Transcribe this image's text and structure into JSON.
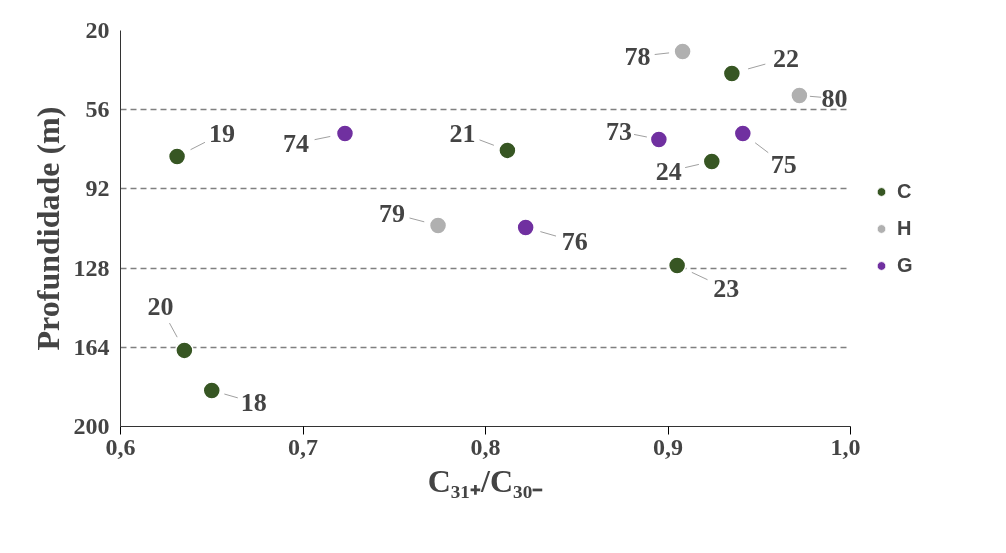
{
  "chart_data": {
    "type": "scatter",
    "xlabel": "C₃₁₊/C₃₀₋",
    "ylabel": "Profundidade (m)",
    "xlim": [
      0.6,
      1.0
    ],
    "ylim": [
      200,
      20
    ],
    "xticks": [
      {
        "value": 0.6,
        "label": "0,6"
      },
      {
        "value": 0.7,
        "label": "0,7"
      },
      {
        "value": 0.8,
        "label": "0,8"
      },
      {
        "value": 0.9,
        "label": "0,9"
      },
      {
        "value": 1.0,
        "label": "1,0"
      }
    ],
    "yticks": [
      20,
      56,
      92,
      128,
      164,
      200
    ],
    "grid": "y",
    "legend": "right",
    "marker": "circle",
    "series": [
      {
        "name": "C",
        "color": "#375623",
        "x": [
          0.631,
          0.635,
          0.65,
          0.812,
          0.935,
          0.905,
          0.924
        ],
        "values": [
          77.3,
          165.4,
          183.6,
          74.5,
          39.5,
          126.8,
          79.5
        ]
      },
      {
        "name": "H",
        "color": "#b0b0b0",
        "x": [
          0.908,
          0.972,
          0.774
        ],
        "values": [
          29.5,
          49.5,
          108.6
        ]
      },
      {
        "name": "G",
        "color": "#7030a0",
        "x": [
          0.723,
          0.822,
          0.895,
          0.941
        ],
        "values": [
          66.8,
          109.5,
          69.5,
          66.8
        ]
      }
    ],
    "annotations": [
      {
        "text": "19",
        "x": 0.631,
        "y": 77.3
      },
      {
        "text": "20",
        "x": 0.635,
        "y": 165.4
      },
      {
        "text": "18",
        "x": 0.65,
        "y": 183.6
      },
      {
        "text": "21",
        "x": 0.812,
        "y": 74.5
      },
      {
        "text": "22",
        "x": 0.935,
        "y": 39.5
      },
      {
        "text": "23",
        "x": 0.905,
        "y": 126.8
      },
      {
        "text": "24",
        "x": 0.924,
        "y": 79.5
      },
      {
        "text": "78",
        "x": 0.908,
        "y": 29.5
      },
      {
        "text": "80",
        "x": 0.972,
        "y": 49.5
      },
      {
        "text": "79",
        "x": 0.774,
        "y": 108.6
      },
      {
        "text": "74",
        "x": 0.723,
        "y": 66.8
      },
      {
        "text": "76",
        "x": 0.822,
        "y": 109.5
      },
      {
        "text": "73",
        "x": 0.895,
        "y": 69.5
      },
      {
        "text": "75",
        "x": 0.941,
        "y": 66.8
      }
    ]
  }
}
